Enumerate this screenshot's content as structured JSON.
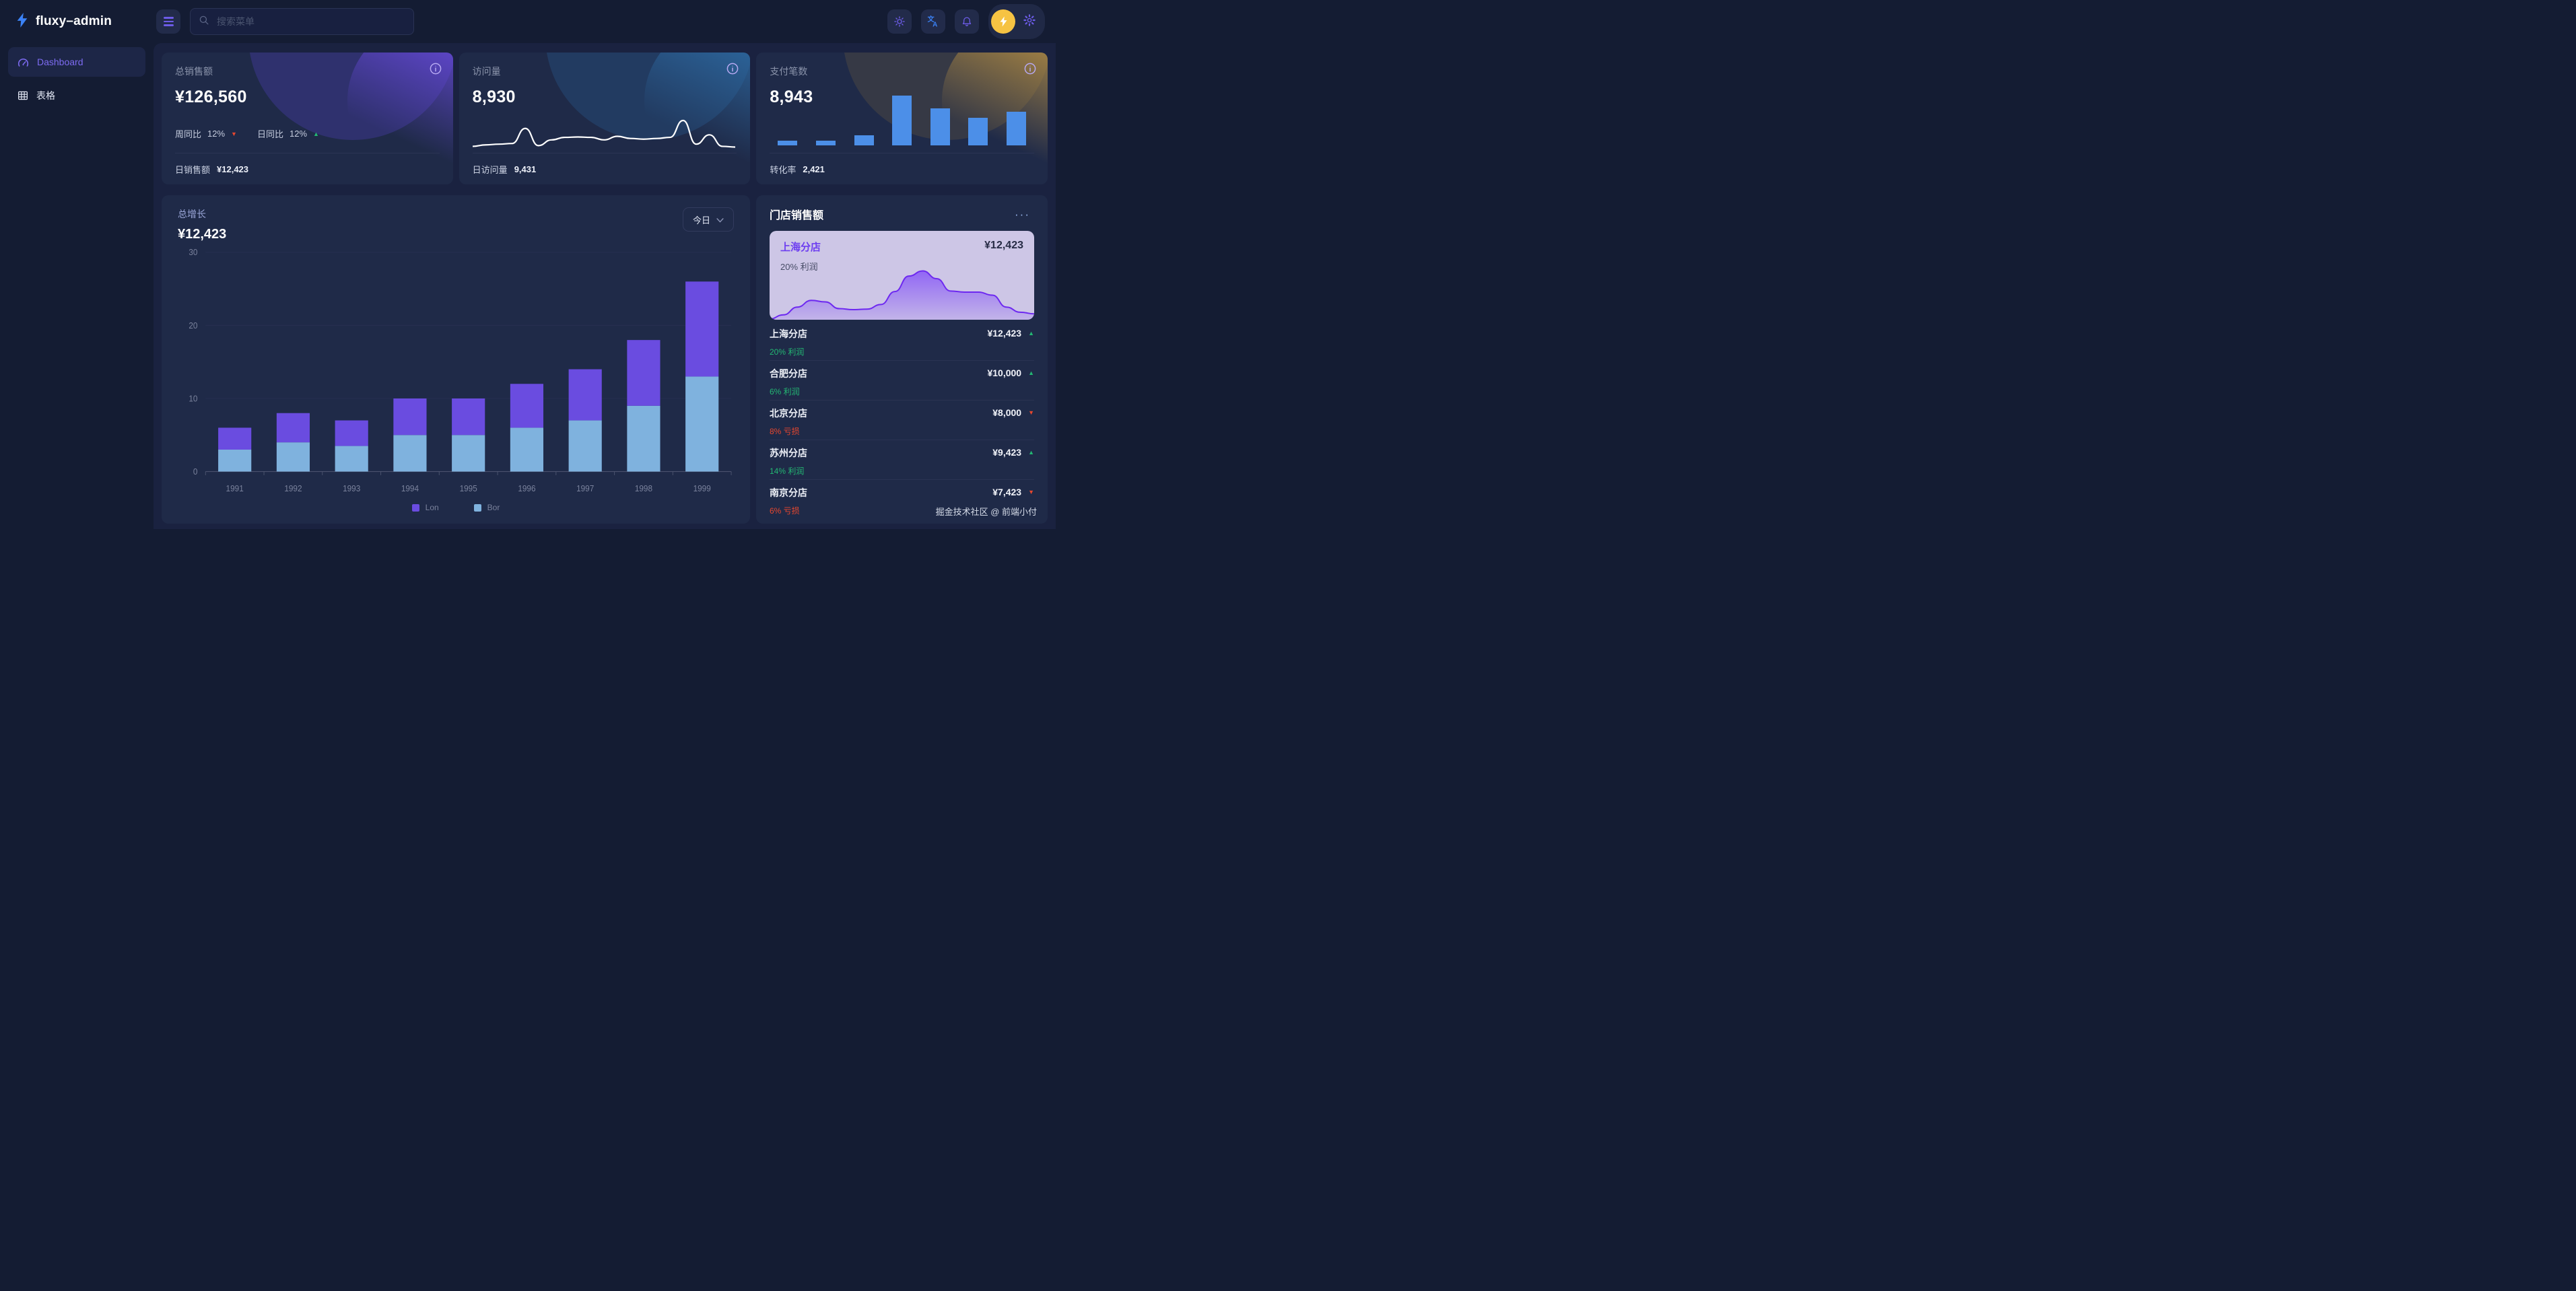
{
  "app": {
    "brand": "fluxy–admin"
  },
  "topbar": {
    "search_placeholder": "搜索菜单"
  },
  "sidebar": {
    "items": [
      {
        "label": "Dashboard",
        "active": true
      },
      {
        "label": "表格",
        "active": false
      }
    ]
  },
  "stats": {
    "sales": {
      "title": "总销售额",
      "value": "¥126,560",
      "trends": [
        {
          "label": "周同比",
          "value": "12%",
          "dir": "down",
          "arrow": "▼"
        },
        {
          "label": "日同比",
          "value": "12%",
          "dir": "up",
          "arrow": "▲"
        }
      ],
      "footer_label": "日销售额",
      "footer_value": "¥12,423"
    },
    "visits": {
      "title": "访问量",
      "value": "8,930",
      "footer_label": "日访问量",
      "footer_value": "9,431",
      "spark": [
        8,
        12,
        14,
        16,
        58,
        10,
        26,
        33,
        34,
        33,
        26,
        36,
        30,
        28,
        30,
        33,
        80,
        14,
        40,
        8,
        6
      ]
    },
    "payments": {
      "title": "支付笔数",
      "value": "8,943",
      "footer_label": "转化率",
      "footer_value": "2,421",
      "bars": [
        10,
        9,
        20,
        100,
        74,
        55,
        67
      ]
    }
  },
  "growth_chart": {
    "title": "总增长",
    "value": "¥12,423",
    "range_label": "今日",
    "type": "bar",
    "stacked": true,
    "categories": [
      "1991",
      "1992",
      "1993",
      "1994",
      "1995",
      "1996",
      "1997",
      "1998",
      "1999"
    ],
    "series": [
      {
        "name": "Lon",
        "color": "#6a4ce0",
        "values": [
          3,
          4,
          3.5,
          5,
          5,
          6,
          7,
          9,
          13
        ]
      },
      {
        "name": "Bor",
        "color": "#7fb2de",
        "values": [
          3,
          4,
          3.5,
          5,
          5,
          6,
          7,
          9,
          13
        ]
      }
    ],
    "ylim": [
      0,
      30
    ],
    "yticks": [
      0,
      10,
      20,
      30
    ]
  },
  "stores": {
    "title": "门店销售额",
    "more_label": "···",
    "featured": {
      "name": "上海分店",
      "value": "¥12,423",
      "profit": "20% 利润",
      "area": [
        2,
        10,
        25,
        38,
        35,
        22,
        20,
        21,
        30,
        55,
        85,
        95,
        80,
        56,
        54,
        54,
        48,
        25,
        15,
        12
      ]
    },
    "rows": [
      {
        "name": "上海分店",
        "pct": "20% 利润",
        "dir": "up",
        "value": "¥12,423",
        "arrow": "▲"
      },
      {
        "name": "合肥分店",
        "pct": "6% 利润",
        "dir": "up",
        "value": "¥10,000",
        "arrow": "▲"
      },
      {
        "name": "北京分店",
        "pct": "8% 亏损",
        "dir": "down",
        "value": "¥8,000",
        "arrow": "▼"
      },
      {
        "name": "苏州分店",
        "pct": "14% 利润",
        "dir": "up",
        "value": "¥9,423",
        "arrow": "▲"
      },
      {
        "name": "南京分店",
        "pct": "6% 亏损",
        "dir": "down",
        "value": "¥7,423",
        "arrow": "▼"
      }
    ],
    "credit": "掘金技术社区 @ 前端小付"
  },
  "colors": {
    "accent": "#6d5ce8",
    "blue": "#3b82f6",
    "mini_bar_blue": "#4c8fe8",
    "green": "#23b873",
    "red": "#e8472e",
    "spark_line": "#ffffff",
    "area_line": "#6d28f0",
    "area_fill": "#8b5cf6"
  }
}
